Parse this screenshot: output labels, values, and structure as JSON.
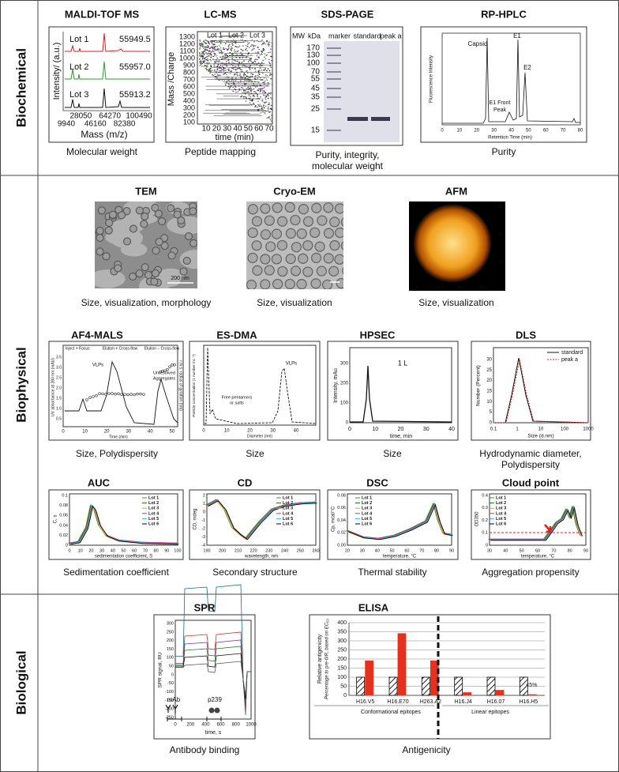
{
  "sections": [
    {
      "label": "Biochemical",
      "panels": [
        {
          "title": "MALDI-TOF MS",
          "caption": "Molecular weight",
          "lots": [
            "Lot 1",
            "Lot 2",
            "Lot 3"
          ],
          "masses": [
            "55949.5",
            "55957.0",
            "55913.2"
          ],
          "y_label": "Intensity/ (a.u.)",
          "x_label": "Mass (m/z)",
          "xticks": [
            9940,
            28050,
            46160,
            64270,
            82380,
            100490
          ]
        },
        {
          "title": "LC-MS",
          "caption": "Peptide mapping",
          "legend": [
            "Lot 1",
            "Lot 2",
            "Lot 3"
          ],
          "y_label": "Mass /Charge",
          "x_label": "time (min)",
          "xticks": [
            10,
            20,
            30,
            40,
            50,
            60,
            70
          ],
          "yticks": [
            100,
            200,
            300,
            400,
            500,
            600,
            700,
            800,
            900,
            1000,
            1100,
            1200,
            1300
          ]
        },
        {
          "title": "SDS-PAGE",
          "caption": [
            "Purity, integrity,",
            "molecular weight"
          ],
          "headers": [
            "MW",
            "kDa",
            "marker",
            "standard",
            "peak a"
          ],
          "mw": [
            170,
            130,
            100,
            70,
            55,
            45,
            35,
            25,
            15
          ]
        },
        {
          "title": "RP-HPLC",
          "caption": "Purity",
          "peaks": [
            "Capsid",
            "E1",
            "E2"
          ],
          "front_peak": [
            "E1 Front",
            "Peak"
          ],
          "y_label": "Fluorescence Intensity",
          "x_label": "Retention Time (min)",
          "xticks": [
            0,
            10,
            20,
            30,
            40,
            50,
            60,
            70,
            80
          ]
        }
      ]
    },
    {
      "label": "Biophysical",
      "panels": [
        {
          "title": "TEM",
          "caption": "Size, visualization, morphology",
          "scale": "200 nm"
        },
        {
          "title": "Cryo-EM",
          "caption": "Size, visualization"
        },
        {
          "title": "AFM",
          "caption": "Size, visualization",
          "xticks": [
            "0",
            "20.0",
            "40.0",
            "60.0"
          ],
          "yticks": [
            "60",
            "40",
            "20"
          ]
        },
        {
          "title": "AF4-MALS",
          "caption": "Size, Polydispersity",
          "phases": [
            "Inject + Focus",
            "Elution + Cross-flow",
            "Elution – Cross-flow"
          ],
          "peak": "VLPs",
          "aggregates": [
            "Unresolved",
            "Aggregates"
          ],
          "y_label": "UV absorbance at 280 nm (mAU)",
          "y2_label": "r.m.s. radius of gyration (nm)",
          "x_label": "Time (min)",
          "xticks": [
            0,
            10,
            20,
            30,
            40,
            50
          ],
          "yticks": [
            "0.5",
            "1.0",
            "1.5",
            "2.0",
            "2.5",
            "3.0",
            "3.5"
          ]
        },
        {
          "title": "ES-DMA",
          "caption": "Size",
          "peak": "VLPs",
          "free": [
            "Free pentamers",
            "or salts"
          ],
          "y_label": "Particle concentration (1 number mL⁻¹)",
          "x_label": "Diameter (nm)",
          "xticks": [
            0,
            10,
            20,
            30,
            40
          ]
        },
        {
          "title": "HPSEC",
          "caption": "Size",
          "label": "1 L",
          "y_label": "Intensity, mAu",
          "x_label": "time, min",
          "xticks": [
            0,
            10,
            20,
            30,
            40
          ],
          "yticks": [
            0,
            100,
            200,
            300
          ]
        },
        {
          "title": "DLS",
          "caption": [
            "Hydrodynamic diameter,",
            "Polydispersity"
          ],
          "legend": [
            "standard",
            "peak a"
          ],
          "y_label": "Number (Percent)",
          "x_label": "Size (d.nm)",
          "xticks": [
            0.1,
            1,
            10,
            100,
            1000
          ],
          "yticks": [
            0,
            5,
            10,
            15,
            20,
            25,
            30
          ]
        },
        {
          "title": "AUC",
          "caption": "Sedimentation coefficient",
          "legend": [
            "Lot 1",
            "Lot 2",
            "Lot 3",
            "Lot 4",
            "Lot 5",
            "Lot 6"
          ],
          "colors": [
            "#2ca02c",
            "#1a6b1a",
            "#e8a020",
            "#d6278c",
            "#29b6d6",
            "#000000"
          ],
          "y_label": "C, s",
          "x_label": "sedimentation coefficient, S",
          "xticks": [
            0,
            10,
            20,
            30,
            40,
            50,
            60,
            70,
            80,
            90,
            100
          ],
          "yticks": [
            0,
            0.02,
            0.04,
            0.06,
            0.08,
            0.1
          ]
        },
        {
          "title": "CD",
          "caption": "Secondary structure",
          "legend": [
            "Lot 1",
            "Lot 2",
            "Lot 3",
            "Lot 4",
            "Lot 5",
            "Lot 6"
          ],
          "colors": [
            "#2ca02c",
            "#1a6b1a",
            "#e8a020",
            "#d6278c",
            "#29b6d6",
            "#000000"
          ],
          "y_label": "CD, mdeg",
          "x_label": "wavelength, nm",
          "xticks": [
            190,
            200,
            210,
            220,
            230,
            240,
            250,
            260
          ],
          "yticks": [
            -4,
            -3,
            -2,
            -1,
            0,
            1,
            2
          ]
        },
        {
          "title": "DSC",
          "caption": "Thermal stability",
          "legend": [
            "Lot 1",
            "Lot 2",
            "Lot 3",
            "Lot 4",
            "Lot 5",
            "Lot 6"
          ],
          "colors": [
            "#2ca02c",
            "#1a6b1a",
            "#e8a020",
            "#d6278c",
            "#29b6d6",
            "#000000"
          ],
          "y_label": "Cp, mcal/°C",
          "x_label": "temperature, °C",
          "xticks": [
            20,
            30,
            40,
            50,
            60,
            70,
            80,
            90
          ],
          "yticks": [
            "0.00",
            "0.02",
            "0.04",
            "0.06",
            "0.08"
          ]
        },
        {
          "title": "Cloud point",
          "caption": "Aggregation propensity",
          "legend": [
            "Lot 1",
            "Lot 2",
            "Lot 3",
            "Lot 4",
            "Lot 5",
            "Lot 6"
          ],
          "colors": [
            "#2ca02c",
            "#1a6b1a",
            "#e8a020",
            "#d6278c",
            "#29b6d6",
            "#000000"
          ],
          "y_label": "OD350",
          "x_label": "temperature, °C",
          "xticks": [
            30,
            40,
            50,
            60,
            70,
            80,
            90
          ],
          "yticks": [
            0,
            0.1,
            0.2,
            0.3,
            0.4
          ]
        }
      ]
    },
    {
      "label": "Biological",
      "panels": [
        {
          "title": "SPR",
          "caption": "Antibody binding",
          "labels": [
            "mAb",
            "p239"
          ],
          "y_label": "SPR signal, RU",
          "x_label": "time, s",
          "xticks": [
            0,
            200,
            400,
            600,
            800,
            1000
          ],
          "yticks": [
            -250,
            -200,
            -150,
            -100,
            -50,
            0,
            50,
            100,
            150,
            200,
            250,
            300
          ]
        },
        {
          "title": "ELISA",
          "caption": "Antigenicity",
          "y_label": "Relative antigenicity",
          "y_sublabel": "Percentage to pre-0/R, based on EC₅₀",
          "ylim": [
            0,
            400
          ],
          "yticks": [
            0,
            50,
            100,
            150,
            200,
            250,
            300,
            350,
            400
          ],
          "categories": [
            "H16.V5",
            "H16.E70",
            "H263.A2",
            "H16.J4",
            "H16.07",
            "H16.H5"
          ],
          "series": [
            {
              "color": "#000000",
              "hatched": true,
              "values": [
                100,
                100,
                100,
                100,
                100,
                100
              ]
            },
            {
              "color": "#e5321f",
              "hatched": false,
              "values": [
                190,
                340,
                190,
                15,
                28,
                4
              ]
            }
          ],
          "groups": [
            "Conformational epitopes",
            "Linear epitopes"
          ],
          "annotation": "<5%"
        }
      ]
    }
  ]
}
